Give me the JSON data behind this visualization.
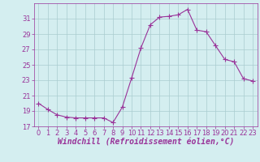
{
  "x": [
    0,
    1,
    2,
    3,
    4,
    5,
    6,
    7,
    8,
    9,
    10,
    11,
    12,
    13,
    14,
    15,
    16,
    17,
    18,
    19,
    20,
    21,
    22,
    23
  ],
  "y": [
    20.0,
    19.2,
    18.5,
    18.2,
    18.1,
    18.1,
    18.1,
    18.1,
    17.5,
    19.5,
    23.3,
    27.2,
    30.2,
    31.2,
    31.3,
    31.5,
    32.2,
    29.5,
    29.3,
    27.5,
    25.7,
    25.4,
    23.2,
    22.9
  ],
  "line_color": "#993399",
  "marker": "+",
  "marker_size": 4,
  "bg_color": "#d4eef0",
  "grid_color": "#aaccd0",
  "xlabel": "Windchill (Refroidissement éolien,°C)",
  "ylabel": "",
  "ylim": [
    17,
    33
  ],
  "xlim": [
    -0.5,
    23.5
  ],
  "yticks": [
    17,
    19,
    21,
    23,
    25,
    27,
    29,
    31
  ],
  "xticks": [
    0,
    1,
    2,
    3,
    4,
    5,
    6,
    7,
    8,
    9,
    10,
    11,
    12,
    13,
    14,
    15,
    16,
    17,
    18,
    19,
    20,
    21,
    22,
    23
  ],
  "tick_fontsize": 6,
  "label_fontsize": 7
}
